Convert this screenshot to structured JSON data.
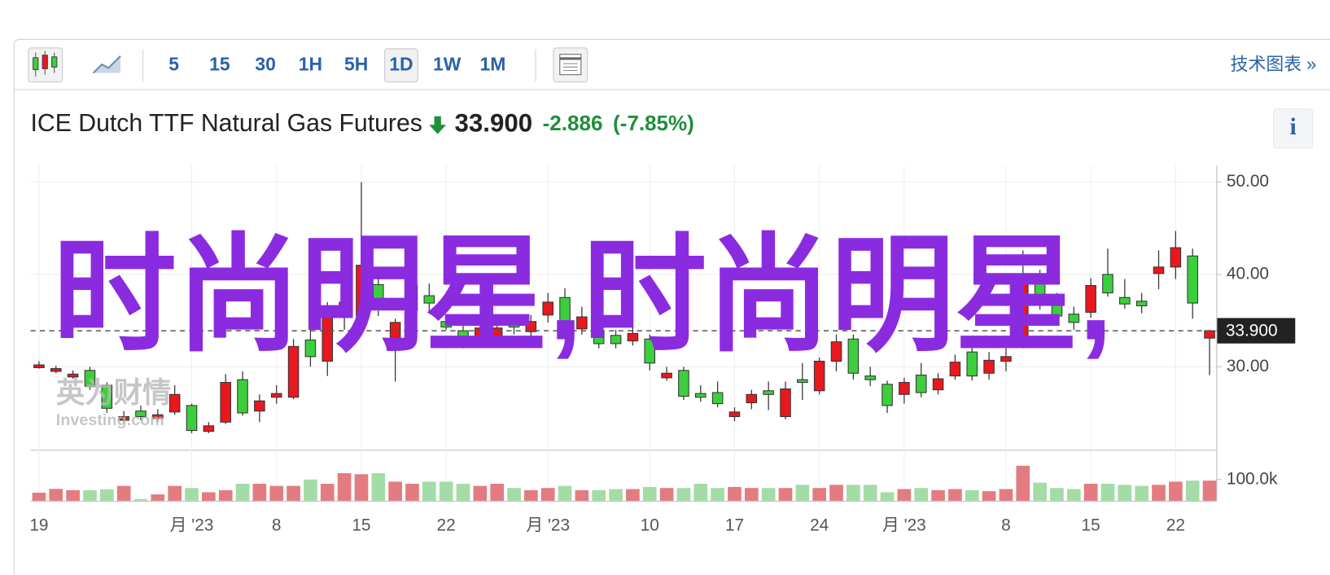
{
  "toolbar": {
    "intervals": [
      "5",
      "15",
      "30",
      "1H",
      "5H",
      "1D",
      "1W",
      "1M"
    ],
    "selected": "1D",
    "technical_link": "技术图表 »"
  },
  "header": {
    "title": "ICE Dutch TTF Natural Gas Futures",
    "price": "33.900",
    "change": "-2.886",
    "change_pct": "(-7.85%)",
    "info": "i"
  },
  "watermark": "时尚明星,时尚明星,",
  "logo": {
    "cn": "英为财情",
    "en": "Investing.com"
  },
  "chart_data": {
    "type": "candlestick",
    "categories": [
      "19",
      null,
      null,
      null,
      null,
      null,
      null,
      null,
      null,
      "月 '23",
      null,
      null,
      null,
      null,
      "8",
      null,
      null,
      null,
      null,
      "15",
      null,
      null,
      null,
      null,
      "22",
      null,
      null,
      null,
      null,
      null,
      "月 '23",
      null,
      null,
      null,
      null,
      null,
      "10",
      null,
      null,
      null,
      null,
      "17",
      null,
      null,
      null,
      null,
      "24",
      null,
      null,
      null,
      null,
      "月 '23",
      null,
      null,
      null,
      null,
      null,
      "8",
      null,
      null,
      null,
      null,
      "15",
      null,
      null,
      null,
      null,
      "22",
      null,
      null
    ],
    "open": [
      29.9,
      29.5,
      28.9,
      29.6,
      28.0,
      24.2,
      25.2,
      24.4,
      25.1,
      25.8,
      23.0,
      24.0,
      28.6,
      25.2,
      26.7,
      26.7,
      32.9,
      30.6,
      36.0,
      35.5,
      38.9,
      33.0,
      36.1,
      37.7,
      34.9,
      33.9,
      32.8,
      33.0,
      35.0,
      33.8,
      35.6,
      37.5,
      34.1,
      33.8,
      33.4,
      32.8,
      33.0,
      28.8,
      29.6,
      27.1,
      27.2,
      24.6,
      26.1,
      27.4,
      24.6,
      28.6,
      27.4,
      30.6,
      33.0,
      29.0,
      28.1,
      27.0,
      29.1,
      27.5,
      29.0,
      31.6,
      29.3,
      30.6,
      33.0,
      39.4,
      37.6,
      35.7,
      35.9,
      40.0,
      37.5,
      37.1,
      40.1,
      40.8,
      42.0,
      33.1
    ],
    "high": [
      30.6,
      30.1,
      29.6,
      30.0,
      28.3,
      25.2,
      25.8,
      25.4,
      28.0,
      26.0,
      24.0,
      29.2,
      29.5,
      27.0,
      28.0,
      33.0,
      34.0,
      37.0,
      38.0,
      50.0,
      40.0,
      35.2,
      39.5,
      39.0,
      35.5,
      34.5,
      34.8,
      35.0,
      35.5,
      35.6,
      38.0,
      38.5,
      36.5,
      34.2,
      34.0,
      34.3,
      33.5,
      30.0,
      30.0,
      28.0,
      28.4,
      25.6,
      27.5,
      28.4,
      28.4,
      30.4,
      31.0,
      33.5,
      33.5,
      30.0,
      28.5,
      28.8,
      30.4,
      29.3,
      31.3,
      32.2,
      31.6,
      32.0,
      42.6,
      40.5,
      38.0,
      36.5,
      39.6,
      42.8,
      39.5,
      38.0,
      42.6,
      44.7,
      42.8,
      34.0
    ],
    "low": [
      29.8,
      29.3,
      28.7,
      27.5,
      25.0,
      23.9,
      24.2,
      24.0,
      24.8,
      22.8,
      22.8,
      23.8,
      24.7,
      24.0,
      26.0,
      26.5,
      30.0,
      29.0,
      34.0,
      34.5,
      35.5,
      28.4,
      35.5,
      36.0,
      34.0,
      32.0,
      32.3,
      32.5,
      33.5,
      32.5,
      34.8,
      33.0,
      33.5,
      32.0,
      32.0,
      32.3,
      29.6,
      28.5,
      26.4,
      26.2,
      25.6,
      24.1,
      25.4,
      25.3,
      24.3,
      26.4,
      27.0,
      29.5,
      28.6,
      27.9,
      25.0,
      26.0,
      26.7,
      27.0,
      28.6,
      28.5,
      28.6,
      29.5,
      32.0,
      36.2,
      35.0,
      34.0,
      35.3,
      37.6,
      36.3,
      35.8,
      38.4,
      39.5,
      35.2,
      29.1
    ],
    "close": [
      30.2,
      29.8,
      29.2,
      27.9,
      25.5,
      24.6,
      24.6,
      24.8,
      27.0,
      23.1,
      23.6,
      28.3,
      25.0,
      26.3,
      27.1,
      32.2,
      31.1,
      36.2,
      37.0,
      41.0,
      36.2,
      34.8,
      38.8,
      36.9,
      34.3,
      32.5,
      34.2,
      34.2,
      34.3,
      34.9,
      37.0,
      33.9,
      35.4,
      32.5,
      32.5,
      33.6,
      30.4,
      29.3,
      26.8,
      26.7,
      26.0,
      25.1,
      27.0,
      27.0,
      27.6,
      28.3,
      30.6,
      32.7,
      29.3,
      28.6,
      25.8,
      28.3,
      27.2,
      28.7,
      30.5,
      29.0,
      30.7,
      31.1,
      39.4,
      37.4,
      35.5,
      34.8,
      38.8,
      38.0,
      36.8,
      36.6,
      40.8,
      42.9,
      36.9,
      33.9
    ],
    "volume": [
      38000,
      56000,
      50000,
      50000,
      54000,
      70000,
      8000,
      30000,
      70000,
      60000,
      40000,
      50000,
      80000,
      80000,
      70000,
      70000,
      100000,
      80000,
      130000,
      125000,
      130000,
      90000,
      80000,
      90000,
      90000,
      80000,
      70000,
      80000,
      60000,
      50000,
      60000,
      70000,
      50000,
      50000,
      55000,
      55000,
      65000,
      60000,
      60000,
      80000,
      60000,
      65000,
      60000,
      60000,
      60000,
      75000,
      60000,
      75000,
      75000,
      75000,
      40000,
      55000,
      60000,
      50000,
      55000,
      50000,
      45000,
      55000,
      165000,
      85000,
      60000,
      55000,
      80000,
      80000,
      75000,
      70000,
      75000,
      90000,
      95000,
      95000
    ],
    "ylim": [
      21,
      51.8
    ],
    "yticks": [
      {
        "value": 30,
        "label": "30.00"
      },
      {
        "value": 40,
        "label": "40.00"
      },
      {
        "value": 50,
        "label": "50.00"
      }
    ],
    "volume_lim": [
      0,
      232000
    ],
    "volume_ticks": [
      {
        "value": 100000,
        "label": "100.0k"
      }
    ],
    "last_price": {
      "value": 33.9,
      "label": "33.900"
    },
    "up_color": "#e8181e",
    "down_color": "#3ccf3c",
    "volume_up_color": "#e27c80",
    "volume_down_color": "#a3dca6",
    "grid": true
  }
}
